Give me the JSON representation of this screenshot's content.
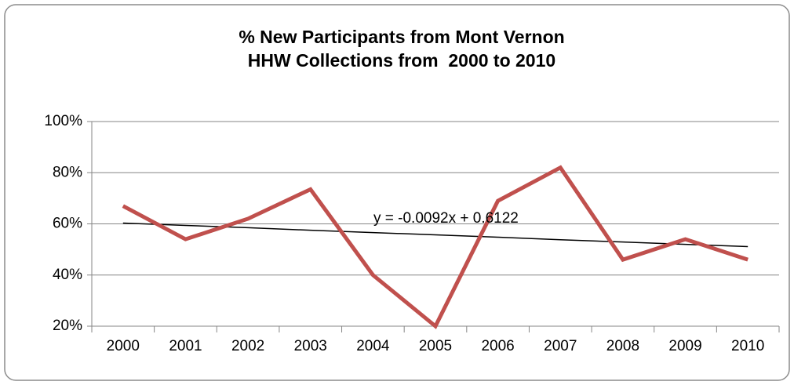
{
  "chart_data": {
    "type": "line",
    "title": [
      "% New Participants from Mont Vernon",
      "HHW Collections from  2000 to 2010"
    ],
    "categories": [
      "2000",
      "2001",
      "2002",
      "2003",
      "2004",
      "2005",
      "2006",
      "2007",
      "2008",
      "2009",
      "2010"
    ],
    "series": [
      {
        "color": "#c0504d",
        "values": [
          67,
          54,
          62,
          73.5,
          40,
          20,
          69,
          82,
          46,
          54,
          46
        ]
      }
    ],
    "trendline": {
      "label": "y = -0.0092x + 0.6122",
      "color": "#000000",
      "values": [
        60.3,
        59.4,
        58.5,
        57.5,
        56.6,
        55.7,
        54.8,
        53.8,
        52.9,
        52.0,
        51.1
      ]
    },
    "ylim": [
      20,
      100
    ],
    "yticks": [
      {
        "value": 20,
        "label": "20%"
      },
      {
        "value": 40,
        "label": "40%"
      },
      {
        "value": 60,
        "label": "60%"
      },
      {
        "value": 80,
        "label": "80%"
      },
      {
        "value": 100,
        "label": "100%"
      }
    ],
    "grid": true
  }
}
